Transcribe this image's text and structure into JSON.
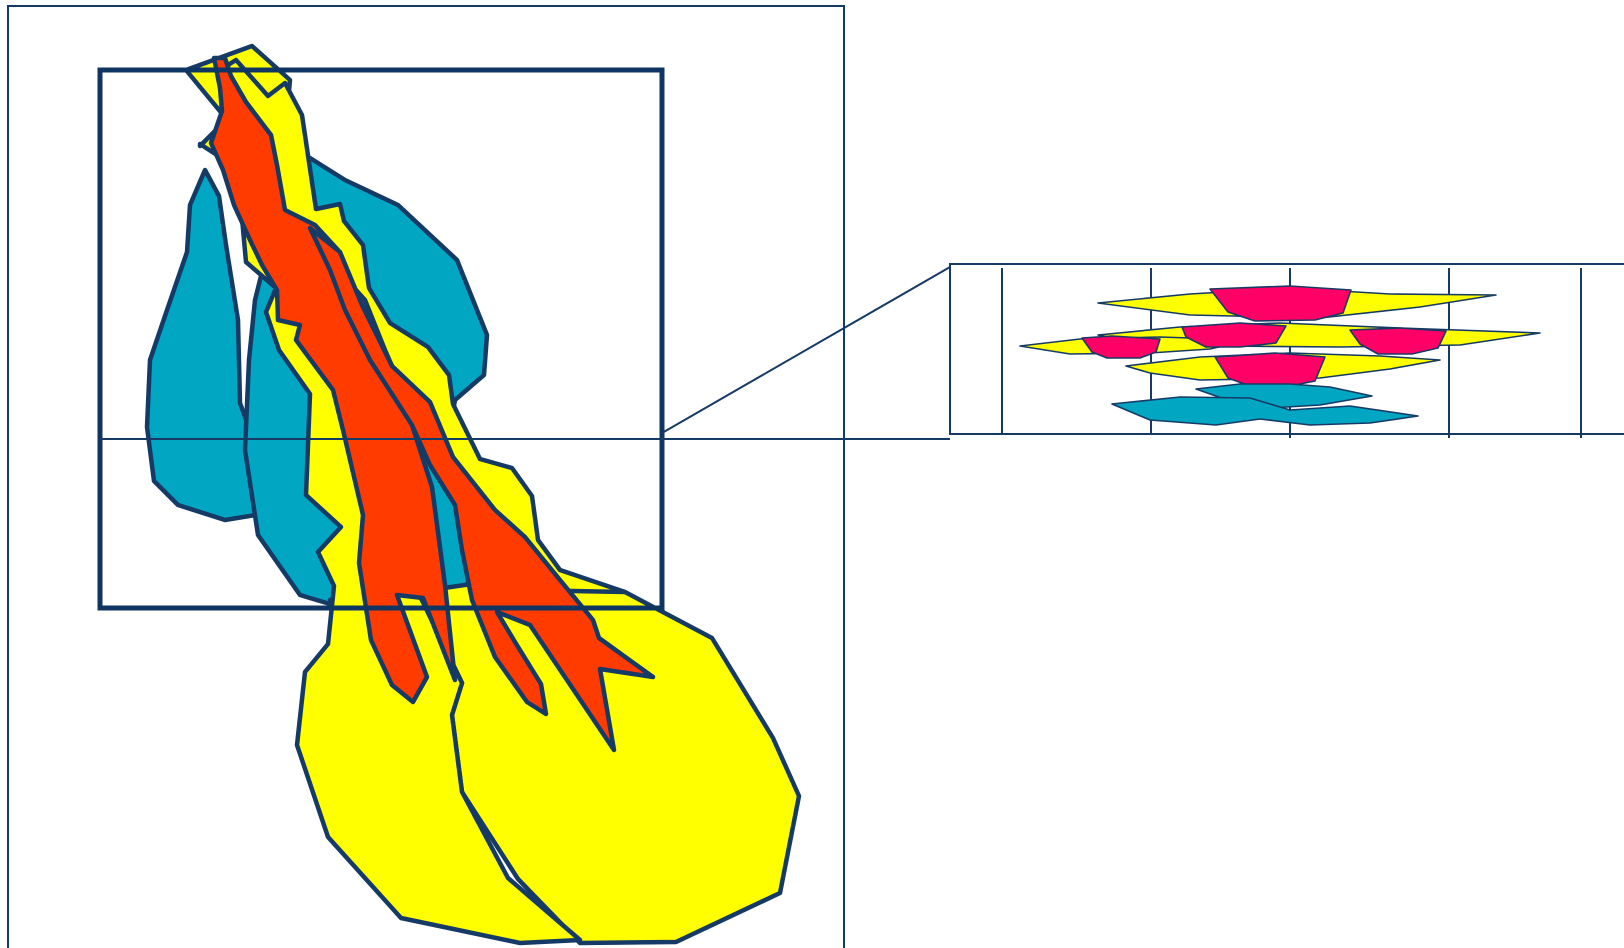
{
  "colors": {
    "outline": "#163a66",
    "zoom_frame": "#0f3563",
    "yellow": "#ffff00",
    "red": "#ff3b00",
    "teal": "#00a6c2",
    "magenta": "#ff0066",
    "background": "#ffffff"
  },
  "plan_view": {
    "lobes": [
      {
        "name": "teal-lobe-left",
        "color": "teal"
      },
      {
        "name": "teal-lobe-right",
        "color": "teal"
      },
      {
        "name": "yellow-lobe-fan",
        "color": "yellow"
      },
      {
        "name": "yellow-channel-belt-outer",
        "color": "yellow"
      },
      {
        "name": "yellow-channel-belt-inner",
        "color": "yellow"
      },
      {
        "name": "red-channel-left",
        "color": "red"
      },
      {
        "name": "red-channel-right",
        "color": "red"
      }
    ]
  },
  "cross_section": {
    "layers": [
      {
        "name": "yellow-layer-top",
        "color": "yellow"
      },
      {
        "name": "yellow-layer-middle",
        "color": "yellow"
      },
      {
        "name": "yellow-layer-lower",
        "color": "yellow"
      },
      {
        "name": "magenta-channel-top",
        "color": "magenta"
      },
      {
        "name": "magenta-channel-mid-left",
        "color": "magenta"
      },
      {
        "name": "magenta-channel-mid-center",
        "color": "magenta"
      },
      {
        "name": "magenta-channel-mid-right",
        "color": "magenta"
      },
      {
        "name": "magenta-channel-lower",
        "color": "magenta"
      },
      {
        "name": "teal-layer-upper",
        "color": "teal"
      },
      {
        "name": "teal-layer-lower",
        "color": "teal"
      }
    ]
  }
}
